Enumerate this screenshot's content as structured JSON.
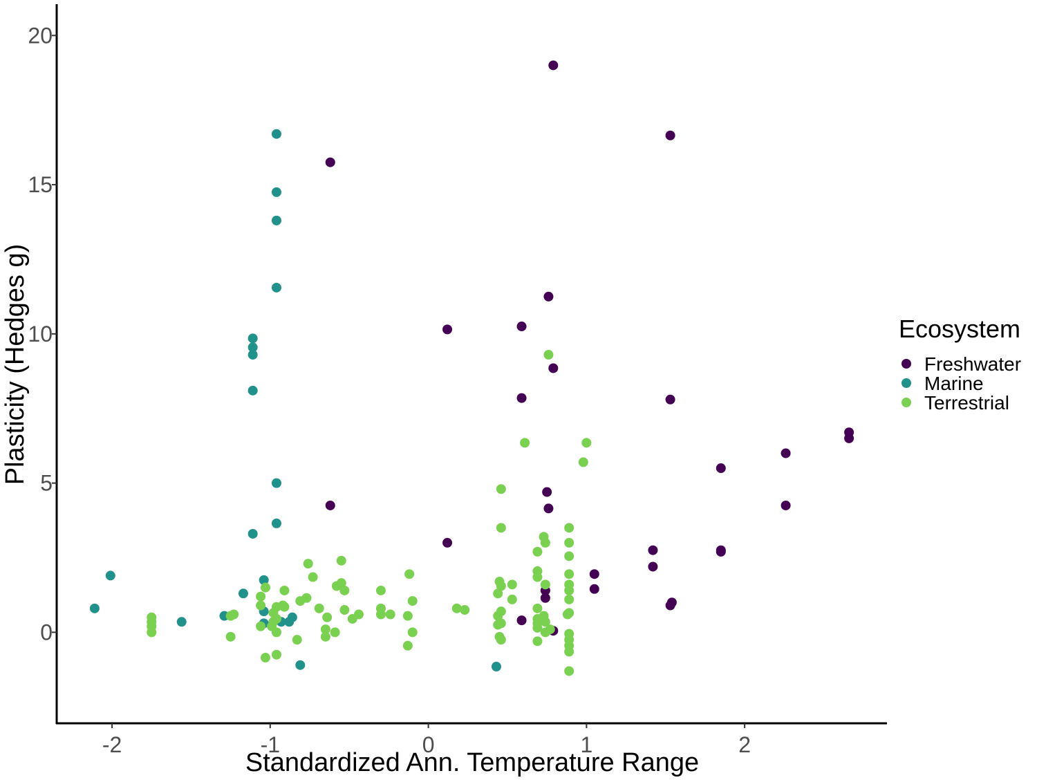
{
  "chart_data": {
    "type": "scatter",
    "title": "",
    "xlabel": "Standardized Ann. Temperature Range",
    "ylabel": "Plasticity (Hedges g)",
    "xlim": [
      -2.35,
      2.9
    ],
    "ylim": [
      -3.05,
      21.05
    ],
    "x_ticks": [
      -2,
      -1,
      0,
      1,
      2
    ],
    "y_ticks": [
      0,
      5,
      10,
      15,
      20
    ],
    "x_tick_labels": [
      "-2",
      "-1",
      "0",
      "1",
      "2"
    ],
    "y_tick_labels": [
      "0",
      "5",
      "10",
      "15",
      "20"
    ],
    "grid": false,
    "legend": {
      "title": "Ecosystem",
      "position": "right"
    },
    "series": [
      {
        "name": "Freshwater",
        "color": "#440154",
        "points": [
          [
            0.79,
            19.0
          ],
          [
            1.53,
            16.65
          ],
          [
            -0.62,
            15.75
          ],
          [
            0.76,
            11.25
          ],
          [
            0.12,
            10.15
          ],
          [
            0.59,
            10.25
          ],
          [
            0.79,
            8.85
          ],
          [
            0.59,
            7.85
          ],
          [
            1.53,
            7.8
          ],
          [
            2.66,
            6.7
          ],
          [
            2.66,
            6.5
          ],
          [
            2.26,
            6.0
          ],
          [
            1.85,
            5.5
          ],
          [
            0.75,
            4.7
          ],
          [
            0.76,
            4.15
          ],
          [
            -0.62,
            4.25
          ],
          [
            2.26,
            4.25
          ],
          [
            0.12,
            3.0
          ],
          [
            1.42,
            2.75
          ],
          [
            1.85,
            2.75
          ],
          [
            1.85,
            2.7
          ],
          [
            1.42,
            2.2
          ],
          [
            1.05,
            1.95
          ],
          [
            1.05,
            1.45
          ],
          [
            0.74,
            1.4
          ],
          [
            0.74,
            1.15
          ],
          [
            1.54,
            1.0
          ],
          [
            1.53,
            0.9
          ],
          [
            0.59,
            0.4
          ],
          [
            0.79,
            0.05
          ]
        ]
      },
      {
        "name": "Marine",
        "color": "#21918c",
        "points": [
          [
            -0.96,
            16.7
          ],
          [
            -0.96,
            14.75
          ],
          [
            -0.96,
            13.8
          ],
          [
            -0.96,
            11.55
          ],
          [
            -1.11,
            9.85
          ],
          [
            -1.11,
            9.55
          ],
          [
            -1.11,
            9.3
          ],
          [
            -1.11,
            8.1
          ],
          [
            -0.96,
            5.0
          ],
          [
            -0.96,
            3.65
          ],
          [
            -1.11,
            3.3
          ],
          [
            -2.01,
            1.9
          ],
          [
            -1.04,
            1.75
          ],
          [
            -1.17,
            1.3
          ],
          [
            -2.11,
            0.8
          ],
          [
            -1.04,
            0.7
          ],
          [
            -1.29,
            0.55
          ],
          [
            -0.86,
            0.5
          ],
          [
            -1.56,
            0.35
          ],
          [
            -0.93,
            0.35
          ],
          [
            -0.88,
            0.35
          ],
          [
            -1.04,
            0.3
          ],
          [
            -0.81,
            -1.1
          ],
          [
            0.43,
            -1.15
          ]
        ]
      },
      {
        "name": "Terrestrial",
        "color": "#7ad151",
        "points": [
          [
            0.76,
            9.3
          ],
          [
            0.61,
            6.35
          ],
          [
            1.0,
            6.35
          ],
          [
            0.98,
            5.7
          ],
          [
            0.46,
            4.8
          ],
          [
            0.46,
            3.5
          ],
          [
            0.89,
            3.5
          ],
          [
            0.73,
            3.2
          ],
          [
            0.74,
            3.0
          ],
          [
            0.89,
            3.0
          ],
          [
            0.69,
            2.7
          ],
          [
            0.89,
            2.55
          ],
          [
            -0.76,
            2.3
          ],
          [
            -0.55,
            2.4
          ],
          [
            -0.12,
            1.95
          ],
          [
            0.69,
            2.05
          ],
          [
            0.89,
            1.95
          ],
          [
            -0.73,
            1.85
          ],
          [
            0.69,
            1.85
          ],
          [
            0.45,
            1.7
          ],
          [
            -0.55,
            1.65
          ],
          [
            0.46,
            1.55
          ],
          [
            0.53,
            1.6
          ],
          [
            0.74,
            1.6
          ],
          [
            0.89,
            1.6
          ],
          [
            -1.03,
            1.5
          ],
          [
            -0.58,
            1.55
          ],
          [
            -0.91,
            1.4
          ],
          [
            -0.53,
            1.4
          ],
          [
            -0.3,
            1.4
          ],
          [
            0.89,
            1.4
          ],
          [
            0.44,
            1.3
          ],
          [
            -1.06,
            1.2
          ],
          [
            -0.77,
            1.15
          ],
          [
            -0.1,
            1.05
          ],
          [
            0.53,
            1.1
          ],
          [
            -0.81,
            1.05
          ],
          [
            0.89,
            1.1
          ],
          [
            -1.06,
            0.9
          ],
          [
            -0.96,
            0.85
          ],
          [
            -0.92,
            0.9
          ],
          [
            -0.91,
            0.85
          ],
          [
            -0.69,
            0.8
          ],
          [
            -0.3,
            0.8
          ],
          [
            0.18,
            0.8
          ],
          [
            0.69,
            0.8
          ],
          [
            0.23,
            0.75
          ],
          [
            -0.53,
            0.75
          ],
          [
            -0.98,
            0.65
          ],
          [
            0.46,
            0.7
          ],
          [
            0.89,
            0.65
          ],
          [
            -1.23,
            0.6
          ],
          [
            -1.25,
            0.55
          ],
          [
            -0.44,
            0.6
          ],
          [
            -0.24,
            0.6
          ],
          [
            -0.3,
            0.6
          ],
          [
            -0.64,
            0.5
          ],
          [
            -0.13,
            0.55
          ],
          [
            0.44,
            0.55
          ],
          [
            0.73,
            0.55
          ],
          [
            0.88,
            0.6
          ],
          [
            -1.75,
            0.5
          ],
          [
            -0.48,
            0.45
          ],
          [
            -0.96,
            0.45
          ],
          [
            0.69,
            0.45
          ],
          [
            -1.75,
            0.35
          ],
          [
            -0.98,
            0.35
          ],
          [
            0.46,
            0.3
          ],
          [
            0.69,
            0.3
          ],
          [
            0.74,
            0.35
          ],
          [
            -1.06,
            0.2
          ],
          [
            -0.99,
            0.2
          ],
          [
            -1.75,
            0.2
          ],
          [
            -0.65,
            0.1
          ],
          [
            0.44,
            0.25
          ],
          [
            0.69,
            0.15
          ],
          [
            0.77,
            0.1
          ],
          [
            -1.75,
            0.0
          ],
          [
            -0.96,
            0.0
          ],
          [
            -0.59,
            0.0
          ],
          [
            -0.1,
            0.0
          ],
          [
            0.74,
            0.0
          ],
          [
            0.89,
            -0.05
          ],
          [
            -1.25,
            -0.15
          ],
          [
            -0.65,
            -0.15
          ],
          [
            0.45,
            -0.15
          ],
          [
            0.46,
            -0.25
          ],
          [
            0.69,
            -0.3
          ],
          [
            0.89,
            -0.25
          ],
          [
            -0.83,
            -0.25
          ],
          [
            -0.13,
            -0.45
          ],
          [
            0.89,
            -0.45
          ],
          [
            0.89,
            -0.65
          ],
          [
            -0.96,
            -0.75
          ],
          [
            -1.03,
            -0.85
          ],
          [
            0.89,
            -1.3
          ]
        ]
      }
    ]
  }
}
